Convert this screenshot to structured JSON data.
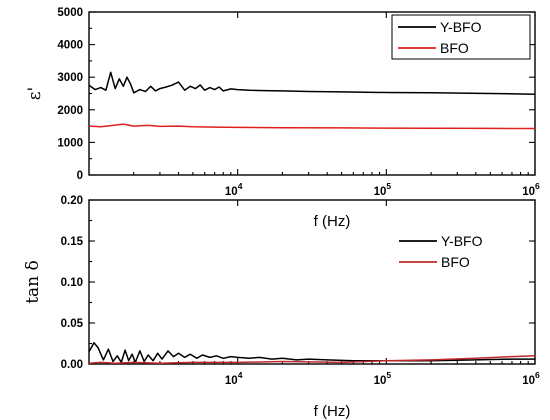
{
  "chart_data": [
    {
      "type": "line",
      "xlabel": "f (Hz)",
      "ylabel": "ε'",
      "xscale": "log",
      "xlim": [
        1000,
        1000000
      ],
      "ylim": [
        0,
        5000
      ],
      "yticks": [
        "0",
        "1000",
        "2000",
        "3000",
        "4000",
        "5000"
      ],
      "xticks": [
        {
          "base": "10",
          "exp": "4",
          "value": 10000
        },
        {
          "base": "10",
          "exp": "5",
          "value": 100000
        },
        {
          "base": "10",
          "exp": "6",
          "value": 1000000
        }
      ],
      "legend": "top-right",
      "series": [
        {
          "name": "Y-BFO",
          "color": "#000000",
          "x": [
            1000,
            1100,
            1200,
            1300,
            1400,
            1500,
            1600,
            1700,
            1800,
            1900,
            2000,
            2200,
            2400,
            2600,
            2800,
            3000,
            3300,
            3600,
            4000,
            4400,
            4800,
            5200,
            5600,
            6000,
            6500,
            7000,
            7500,
            8000,
            9000,
            10000,
            12000,
            15000,
            20000,
            30000,
            50000,
            100000,
            200000,
            500000,
            1000000
          ],
          "y": [
            2750,
            2620,
            2680,
            2600,
            3150,
            2650,
            2950,
            2720,
            3000,
            2800,
            2520,
            2620,
            2560,
            2720,
            2580,
            2650,
            2700,
            2750,
            2850,
            2600,
            2720,
            2650,
            2760,
            2600,
            2680,
            2620,
            2700,
            2580,
            2640,
            2620,
            2600,
            2590,
            2580,
            2560,
            2550,
            2530,
            2520,
            2500,
            2480
          ]
        },
        {
          "name": "BFO",
          "color": "#e0201b",
          "x": [
            1000,
            1200,
            1500,
            1700,
            2000,
            2500,
            3000,
            4000,
            5000,
            7000,
            10000,
            20000,
            50000,
            100000,
            200000,
            500000,
            1000000
          ],
          "y": [
            1500,
            1480,
            1530,
            1560,
            1500,
            1520,
            1490,
            1500,
            1480,
            1470,
            1460,
            1450,
            1445,
            1440,
            1435,
            1430,
            1425
          ]
        }
      ]
    },
    {
      "type": "line",
      "xlabel": "f (Hz)",
      "ylabel": "tan δ",
      "xscale": "log",
      "xlim": [
        1000,
        1000000
      ],
      "ylim": [
        0,
        0.2
      ],
      "yticks": [
        "0.00",
        "0.05",
        "0.10",
        "0.15",
        "0.20"
      ],
      "xticks": [
        {
          "base": "10",
          "exp": "4",
          "value": 10000
        },
        {
          "base": "10",
          "exp": "5",
          "value": 100000
        },
        {
          "base": "10",
          "exp": "6",
          "value": 1000000
        }
      ],
      "legend": "center-right",
      "series": [
        {
          "name": "Y-BFO",
          "color": "#000000",
          "x": [
            1000,
            1080,
            1150,
            1250,
            1350,
            1450,
            1550,
            1650,
            1750,
            1850,
            1950,
            2050,
            2200,
            2350,
            2500,
            2700,
            2900,
            3100,
            3400,
            3700,
            4000,
            4400,
            4800,
            5300,
            5800,
            6500,
            7200,
            8000,
            9000,
            10000,
            12000,
            14000,
            17000,
            20000,
            25000,
            30000,
            40000,
            60000,
            100000,
            200000,
            400000,
            700000,
            1000000
          ],
          "y": [
            0.015,
            0.026,
            0.02,
            0.005,
            0.018,
            0.003,
            0.01,
            0.002,
            0.017,
            0.004,
            0.012,
            0.002,
            0.016,
            0.003,
            0.011,
            0.004,
            0.013,
            0.006,
            0.016,
            0.009,
            0.013,
            0.008,
            0.012,
            0.007,
            0.011,
            0.008,
            0.01,
            0.007,
            0.009,
            0.008,
            0.007,
            0.008,
            0.006,
            0.007,
            0.005,
            0.006,
            0.005,
            0.004,
            0.004,
            0.004,
            0.005,
            0.006,
            0.006
          ]
        },
        {
          "name": "BFO",
          "color": "#c0282a",
          "x": [
            1000,
            1200,
            1500,
            2000,
            3000,
            5000,
            10000,
            20000,
            50000,
            100000,
            200000,
            400000,
            700000,
            1000000
          ],
          "y": [
            0.001,
            0.002,
            0.001,
            0.002,
            0.001,
            0.002,
            0.002,
            0.003,
            0.002,
            0.004,
            0.005,
            0.007,
            0.009,
            0.01
          ]
        }
      ]
    }
  ]
}
